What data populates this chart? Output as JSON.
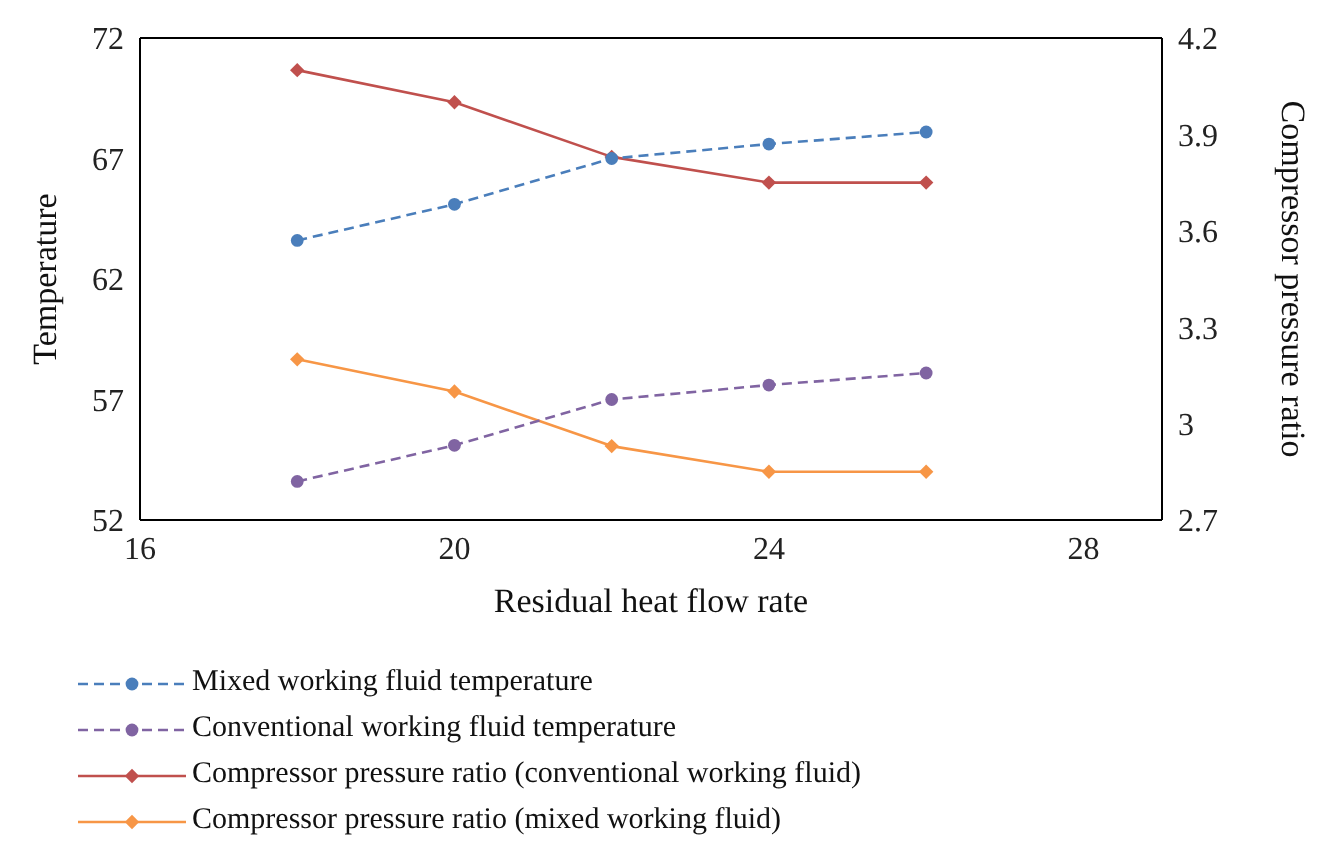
{
  "chart_data": {
    "type": "line",
    "xlabel": "Residual heat flow rate",
    "ylabel": "Temperature",
    "y2label": "Compressor pressure ratio",
    "x": [
      18,
      20,
      22,
      24,
      26
    ],
    "series": [
      {
        "name": "Mixed working fluid temperature",
        "color": "#4a7ebb",
        "values": [
          63.6,
          65.1,
          67.0,
          67.6,
          68.1
        ],
        "marker": "circle",
        "line_style": "dashed"
      },
      {
        "name": "Conventional working fluid temperature",
        "color": "#8064a2",
        "values": [
          53.6,
          55.1,
          57.0,
          57.6,
          58.1
        ],
        "marker": "circle",
        "line_style": "dashed"
      },
      {
        "name": "Compressor pressure ratio (conventional working fluid)",
        "color": "#c0504d",
        "values": [
          4.1,
          4.0,
          3.83,
          3.75,
          3.75
        ],
        "marker": "diamond",
        "line_style": "solid",
        "axis": "y2"
      },
      {
        "name": "Compressor pressure ratio (mixed working fluid)",
        "color": "#f79646",
        "values": [
          3.2,
          3.1,
          2.93,
          2.85,
          2.85
        ],
        "marker": "diamond",
        "line_style": "solid",
        "axis": "y2"
      }
    ],
    "xlim": [
      16,
      29
    ],
    "xticks": [
      16,
      20,
      24,
      28
    ],
    "ylim": [
      52,
      72
    ],
    "yticks": [
      52,
      57,
      62,
      67,
      72
    ],
    "y2lim": [
      2.7,
      4.2
    ],
    "y2ticks": [
      2.7,
      3,
      3.3,
      3.6,
      3.9,
      4.2
    ],
    "grid": false,
    "legend": "bottom"
  }
}
